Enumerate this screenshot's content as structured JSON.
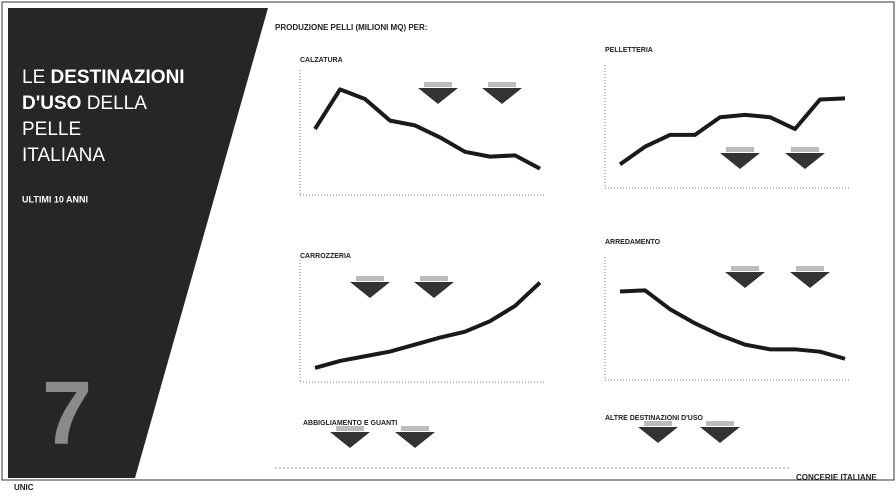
{
  "page": {
    "title": {
      "l1a": "LE ",
      "l1b": "DESTINAZIONI",
      "l2a": "D'USO",
      "l2b": " DELLA",
      "l3": "PELLE",
      "l4": "ITALIANA"
    },
    "subtitle": "ULTIMI 10 ANNI",
    "number": "7",
    "header": "PRODUZIONE PELLI (MILIONI MQ) PER:",
    "sections": [
      "ABBIGLIAMENTO E GUANTI",
      "ALTRE DESTINAZIONI D'USO"
    ],
    "footer_left": "UNIC",
    "footer_right": "CONCERIE ITALIANE"
  },
  "chart_data": [
    {
      "type": "line",
      "title": "CALZATURA",
      "values": [
        55,
        88,
        80,
        62,
        58,
        48,
        36,
        32,
        33,
        22
      ],
      "ylim": [
        0,
        100
      ],
      "color": "#1a1a1a"
    },
    {
      "type": "line",
      "title": "PELLETTERIA",
      "values": [
        20,
        35,
        45,
        45,
        60,
        62,
        60,
        50,
        75,
        76
      ],
      "ylim": [
        0,
        100
      ],
      "color": "#1a1a1a"
    },
    {
      "type": "line",
      "title": "CARROZZERIA",
      "values": [
        12,
        18,
        22,
        26,
        32,
        38,
        43,
        52,
        65,
        85
      ],
      "ylim": [
        0,
        100
      ],
      "color": "#1a1a1a"
    },
    {
      "type": "line",
      "title": "ARREDAMENTO",
      "values": [
        75,
        76,
        60,
        48,
        38,
        30,
        26,
        26,
        24,
        18
      ],
      "ylim": [
        0,
        100
      ],
      "color": "#1a1a1a"
    }
  ]
}
